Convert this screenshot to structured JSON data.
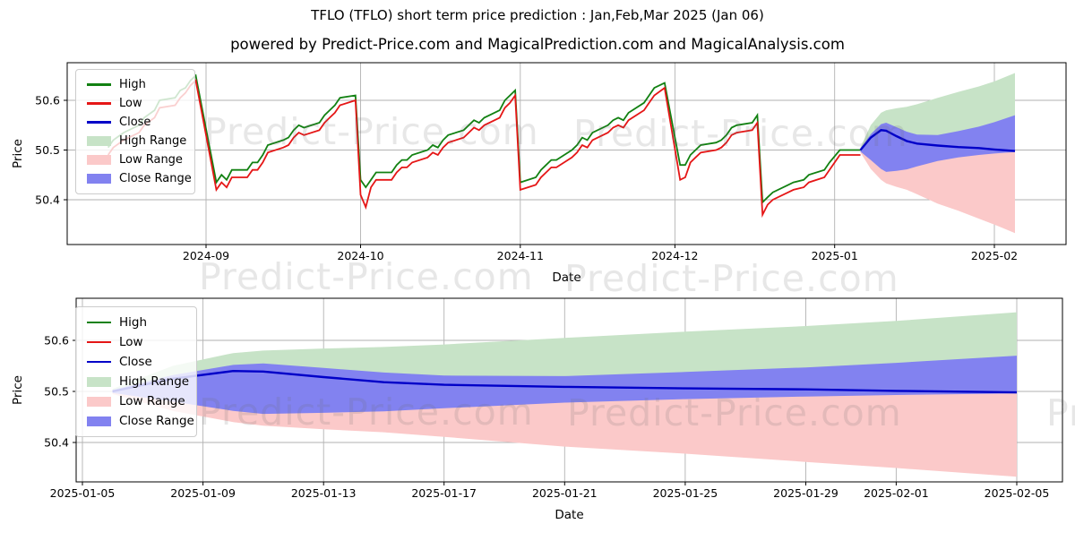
{
  "page": {
    "title": "TFLO (TFLO) short term price prediction : Jan,Feb,Mar 2025 (Jan 06)",
    "subtitle": "powered by Predict-Price.com and MagicalPrediction.com and MagicalAnalysis.com"
  },
  "watermark_text": "Predict-Price.com",
  "colors": {
    "high": "#128112",
    "low": "#e51616",
    "close": "#0000c8",
    "high_range": "#c7e3c7",
    "low_range": "#fbc9c9",
    "close_range": "#8282f0",
    "grid": "#b2b2b2",
    "frame": "#000000"
  },
  "legend": {
    "items": [
      {
        "label": "High",
        "type": "line",
        "color_key": "high"
      },
      {
        "label": "Low",
        "type": "line",
        "color_key": "low"
      },
      {
        "label": "Close",
        "type": "line",
        "color_key": "close"
      },
      {
        "label": "High Range",
        "type": "patch",
        "color_key": "high_range"
      },
      {
        "label": "Low Range",
        "type": "patch",
        "color_key": "low_range"
      },
      {
        "label": "Close Range",
        "type": "patch",
        "color_key": "close_range"
      }
    ]
  },
  "chart_data": {
    "type": "line",
    "title": "TFLO (TFLO) short term price prediction : Jan,Feb,Mar 2025 (Jan 06)",
    "history": {
      "dates": [
        "2024-08-13",
        "2024-08-14",
        "2024-08-16",
        "2024-08-19",
        "2024-08-20",
        "2024-08-22",
        "2024-08-23",
        "2024-08-26",
        "2024-08-27",
        "2024-08-28",
        "2024-08-29",
        "2024-08-30",
        "2024-09-03",
        "2024-09-04",
        "2024-09-05",
        "2024-09-06",
        "2024-09-09",
        "2024-09-10",
        "2024-09-11",
        "2024-09-12",
        "2024-09-13",
        "2024-09-16",
        "2024-09-17",
        "2024-09-18",
        "2024-09-19",
        "2024-09-20",
        "2024-09-23",
        "2024-09-24",
        "2024-09-25",
        "2024-09-26",
        "2024-09-27",
        "2024-09-30",
        "2024-10-01",
        "2024-10-02",
        "2024-10-03",
        "2024-10-04",
        "2024-10-07",
        "2024-10-08",
        "2024-10-09",
        "2024-10-10",
        "2024-10-11",
        "2024-10-14",
        "2024-10-15",
        "2024-10-16",
        "2024-10-17",
        "2024-10-18",
        "2024-10-21",
        "2024-10-22",
        "2024-10-23",
        "2024-10-24",
        "2024-10-25",
        "2024-10-28",
        "2024-10-29",
        "2024-10-30",
        "2024-10-31",
        "2024-11-01",
        "2024-11-04",
        "2024-11-05",
        "2024-11-06",
        "2024-11-07",
        "2024-11-08",
        "2024-11-11",
        "2024-11-12",
        "2024-11-13",
        "2024-11-14",
        "2024-11-15",
        "2024-11-18",
        "2024-11-19",
        "2024-11-20",
        "2024-11-21",
        "2024-11-22",
        "2024-11-25",
        "2024-11-26",
        "2024-11-27",
        "2024-11-29",
        "2024-12-02",
        "2024-12-03",
        "2024-12-04",
        "2024-12-05",
        "2024-12-06",
        "2024-12-09",
        "2024-12-10",
        "2024-12-11",
        "2024-12-12",
        "2024-12-13",
        "2024-12-16",
        "2024-12-17",
        "2024-12-18",
        "2024-12-19",
        "2024-12-20",
        "2024-12-23",
        "2024-12-24",
        "2024-12-26",
        "2024-12-27",
        "2024-12-30",
        "2024-12-31",
        "2025-01-02",
        "2025-01-03",
        "2025-01-06"
      ],
      "high": [
        50.505,
        50.52,
        50.535,
        50.55,
        50.565,
        50.58,
        50.6,
        50.605,
        50.62,
        50.625,
        50.64,
        50.65,
        50.435,
        50.45,
        50.44,
        50.46,
        50.46,
        50.475,
        50.475,
        50.49,
        50.51,
        50.52,
        50.525,
        50.54,
        50.55,
        50.545,
        50.555,
        50.57,
        50.58,
        50.59,
        50.605,
        50.61,
        50.44,
        50.425,
        50.44,
        50.455,
        50.455,
        50.47,
        50.48,
        50.48,
        50.49,
        50.5,
        50.51,
        50.505,
        50.52,
        50.53,
        50.54,
        50.55,
        50.56,
        50.555,
        50.565,
        50.58,
        50.6,
        50.61,
        50.62,
        50.435,
        50.445,
        50.46,
        50.47,
        50.48,
        50.48,
        50.5,
        50.51,
        50.525,
        50.52,
        50.535,
        50.55,
        50.56,
        50.565,
        50.56,
        50.575,
        50.595,
        50.61,
        50.625,
        50.635,
        50.47,
        50.47,
        50.49,
        50.5,
        50.51,
        50.515,
        50.52,
        50.53,
        50.545,
        50.55,
        50.555,
        50.57,
        50.395,
        50.405,
        50.415,
        50.43,
        50.435,
        50.44,
        50.45,
        50.46,
        50.475,
        50.5,
        50.5,
        50.5
      ],
      "low": [
        50.49,
        50.505,
        50.52,
        50.535,
        50.55,
        50.565,
        50.585,
        50.59,
        50.605,
        50.615,
        50.63,
        50.64,
        50.42,
        50.435,
        50.425,
        50.445,
        50.445,
        50.46,
        50.46,
        50.475,
        50.495,
        50.505,
        50.51,
        50.525,
        50.535,
        50.53,
        50.54,
        50.555,
        50.565,
        50.575,
        50.59,
        50.6,
        50.41,
        50.385,
        50.425,
        50.44,
        50.44,
        50.455,
        50.465,
        50.465,
        50.475,
        50.485,
        50.495,
        50.49,
        50.505,
        50.515,
        50.525,
        50.535,
        50.545,
        50.54,
        50.55,
        50.565,
        50.585,
        50.595,
        50.61,
        50.42,
        50.43,
        50.445,
        50.455,
        50.465,
        50.465,
        50.485,
        50.495,
        50.51,
        50.505,
        50.52,
        50.535,
        50.545,
        50.55,
        50.545,
        50.56,
        50.58,
        50.595,
        50.61,
        50.625,
        50.44,
        50.445,
        50.475,
        50.485,
        50.495,
        50.5,
        50.505,
        50.515,
        50.53,
        50.535,
        50.54,
        50.555,
        50.37,
        50.39,
        50.4,
        50.415,
        50.42,
        50.425,
        50.435,
        50.445,
        50.46,
        50.49,
        50.49,
        50.49
      ]
    },
    "forecast": {
      "dates": [
        "2025-01-06",
        "2025-01-08",
        "2025-01-10",
        "2025-01-11",
        "2025-01-13",
        "2025-01-15",
        "2025-01-17",
        "2025-01-21",
        "2025-01-25",
        "2025-01-29",
        "2025-02-01",
        "2025-02-05"
      ],
      "close": [
        50.5,
        50.525,
        50.54,
        50.539,
        50.528,
        50.518,
        50.513,
        50.509,
        50.506,
        50.504,
        50.501,
        50.498
      ],
      "high_range_top": [
        50.505,
        50.55,
        50.575,
        50.58,
        50.584,
        50.587,
        50.592,
        50.605,
        50.617,
        50.628,
        50.638,
        50.655
      ],
      "low_range_bottom": [
        50.495,
        50.462,
        50.44,
        50.433,
        50.426,
        50.42,
        50.411,
        50.392,
        50.378,
        50.362,
        50.35,
        50.333
      ],
      "close_range_top": [
        50.503,
        50.532,
        50.552,
        50.555,
        50.546,
        50.537,
        50.531,
        50.53,
        50.538,
        50.547,
        50.556,
        50.57
      ],
      "close_range_bottom": [
        50.497,
        50.48,
        50.462,
        50.456,
        50.458,
        50.461,
        50.467,
        50.478,
        50.485,
        50.49,
        50.493,
        50.496
      ]
    },
    "charts": [
      {
        "name": "full-history-chart",
        "includes": [
          "history",
          "forecast"
        ],
        "ylabel": "Price",
        "xlabel": "Date",
        "y_ticks": [
          50.4,
          50.5,
          50.6
        ],
        "ylim": [
          50.31,
          50.675
        ],
        "x_ticks": [
          {
            "date": "2024-09-01",
            "label": "2024-09"
          },
          {
            "date": "2024-10-01",
            "label": "2024-10"
          },
          {
            "date": "2024-11-01",
            "label": "2024-11"
          },
          {
            "date": "2024-12-01",
            "label": "2024-12"
          },
          {
            "date": "2025-01-01",
            "label": "2025-01"
          },
          {
            "date": "2025-02-01",
            "label": "2025-02"
          }
        ]
      },
      {
        "name": "forecast-zoom-chart",
        "includes": [
          "forecast"
        ],
        "ylabel": "Price",
        "xlabel": "Date",
        "y_ticks": [
          50.4,
          50.5,
          50.6
        ],
        "ylim": [
          50.32,
          50.68
        ],
        "x_ticks": [
          {
            "date": "2025-01-05",
            "label": "2025-01-05"
          },
          {
            "date": "2025-01-09",
            "label": "2025-01-09"
          },
          {
            "date": "2025-01-13",
            "label": "2025-01-13"
          },
          {
            "date": "2025-01-17",
            "label": "2025-01-17"
          },
          {
            "date": "2025-01-21",
            "label": "2025-01-21"
          },
          {
            "date": "2025-01-25",
            "label": "2025-01-25"
          },
          {
            "date": "2025-01-29",
            "label": "2025-01-29"
          },
          {
            "date": "2025-02-01",
            "label": "2025-02-01"
          },
          {
            "date": "2025-02-05",
            "label": "2025-02-05"
          }
        ]
      }
    ]
  }
}
